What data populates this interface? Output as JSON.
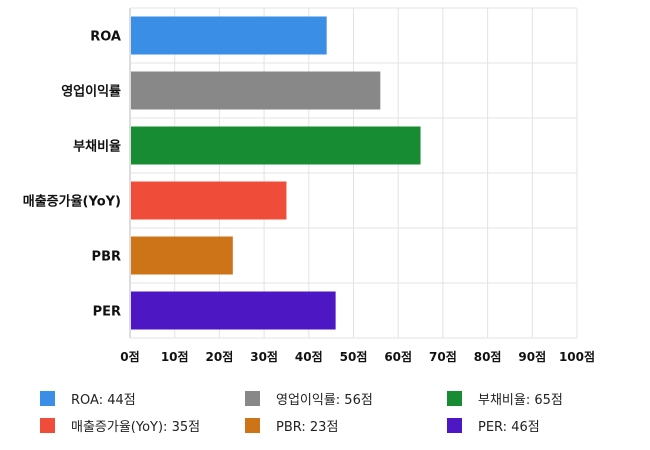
{
  "chart_data": {
    "type": "bar",
    "orientation": "horizontal",
    "categories": [
      "ROA",
      "영업이익률",
      "부채비율",
      "매출증가율(YoY)",
      "PBR",
      "PER"
    ],
    "values": [
      44,
      56,
      65,
      35,
      23,
      46
    ],
    "colors": [
      "#3a8ee6",
      "#888888",
      "#178c33",
      "#ef4c3a",
      "#cd7418",
      "#4d17c4"
    ],
    "xlim": [
      0,
      100
    ],
    "xticks": [
      0,
      10,
      20,
      30,
      40,
      50,
      60,
      70,
      80,
      90,
      100
    ],
    "xtick_labels": [
      "0점",
      "10점",
      "20점",
      "30점",
      "40점",
      "50점",
      "60점",
      "70점",
      "80점",
      "90점",
      "100점"
    ],
    "grid": true,
    "legend_position": "bottom",
    "legend": [
      {
        "label": "ROA: 44점",
        "color": "#3a8ee6"
      },
      {
        "label": "영업이익률: 56점",
        "color": "#888888"
      },
      {
        "label": "부채비율: 65점",
        "color": "#178c33"
      },
      {
        "label": "매출증가율(YoY): 35점",
        "color": "#ef4c3a"
      },
      {
        "label": "PBR: 23점",
        "color": "#cd7418"
      },
      {
        "label": "PER: 46점",
        "color": "#4d17c4"
      }
    ]
  }
}
